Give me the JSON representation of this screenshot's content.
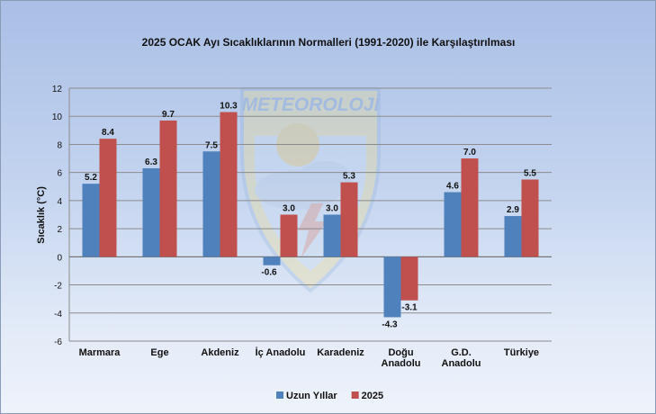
{
  "chart_data": {
    "type": "bar",
    "title": "2025 OCAK Ayı Sıcaklıklarının Normalleri (1991-2020) ile Karşılaştırılması",
    "ylabel": "Sıcaklık (°C)",
    "xlabel": "",
    "ylim": [
      -6,
      12
    ],
    "yticks": [
      -6,
      -4,
      -2,
      0,
      2,
      4,
      6,
      8,
      10,
      12
    ],
    "categories": [
      [
        "Marmara"
      ],
      [
        "Ege"
      ],
      [
        "Akdeniz"
      ],
      [
        "İç Anadolu"
      ],
      [
        "Karadeniz"
      ],
      [
        "Doğu",
        "Anadolu"
      ],
      [
        "G.D.",
        "Anadolu"
      ],
      [
        "Türkiye"
      ]
    ],
    "series": [
      {
        "name": "Uzun Yıllar",
        "color": "#4f81bd",
        "values": [
          5.2,
          6.3,
          7.5,
          -0.6,
          3.0,
          -4.3,
          4.6,
          2.9
        ]
      },
      {
        "name": "2025",
        "color": "#c0504d",
        "values": [
          8.4,
          9.7,
          10.3,
          3.0,
          5.3,
          -3.1,
          7.0,
          5.5
        ]
      }
    ],
    "legend_position": "bottom",
    "grid": true,
    "watermark": "METEOROLOJİ"
  }
}
